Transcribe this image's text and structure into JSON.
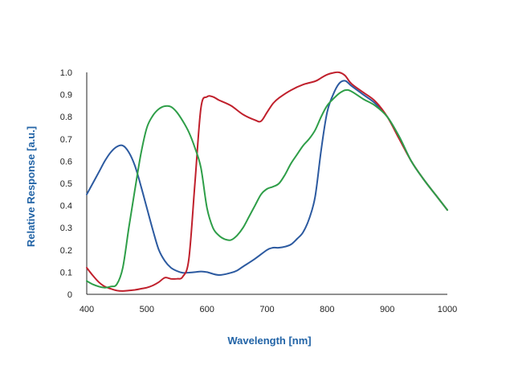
{
  "chart_data": {
    "type": "line",
    "title": "",
    "xlabel": "Wavelength [nm]",
    "ylabel": "Relative Response [a.u.]",
    "xlim": [
      400,
      1000
    ],
    "ylim": [
      0,
      1.0
    ],
    "xticks": [
      400,
      500,
      600,
      700,
      800,
      900,
      1000
    ],
    "yticks": [
      0,
      0.1,
      0.2,
      0.3,
      0.4,
      0.5,
      0.6,
      0.7,
      0.8,
      0.9,
      1.0
    ],
    "ytick_labels": [
      "0",
      "0.1",
      "0.2",
      "0.3",
      "0.4",
      "0.5",
      "0.6",
      "0.7",
      "0.8",
      "0.9",
      "1.0"
    ],
    "axis_title_color": "#2163a6",
    "grid": false,
    "series": [
      {
        "color": "#2c5aa0",
        "x": [
          400,
          410,
          420,
          430,
          440,
          450,
          460,
          470,
          480,
          490,
          500,
          510,
          520,
          530,
          540,
          550,
          560,
          570,
          580,
          590,
          600,
          620,
          640,
          650,
          660,
          680,
          700,
          710,
          720,
          730,
          740,
          750,
          760,
          770,
          780,
          790,
          800,
          810,
          820,
          830,
          840,
          860,
          880,
          900,
          920,
          940,
          960,
          980,
          1000
        ],
        "y": [
          0.45,
          0.5,
          0.55,
          0.6,
          0.64,
          0.665,
          0.67,
          0.64,
          0.58,
          0.49,
          0.39,
          0.29,
          0.2,
          0.15,
          0.12,
          0.105,
          0.097,
          0.098,
          0.1,
          0.103,
          0.1,
          0.087,
          0.097,
          0.107,
          0.125,
          0.16,
          0.2,
          0.21,
          0.21,
          0.215,
          0.225,
          0.25,
          0.28,
          0.34,
          0.44,
          0.65,
          0.82,
          0.9,
          0.95,
          0.962,
          0.94,
          0.9,
          0.86,
          0.8,
          0.71,
          0.6,
          0.52,
          0.45,
          0.38
        ]
      },
      {
        "color": "#c0202c",
        "x": [
          400,
          410,
          420,
          430,
          440,
          450,
          460,
          470,
          480,
          490,
          500,
          510,
          520,
          530,
          540,
          550,
          560,
          570,
          580,
          590,
          600,
          610,
          620,
          640,
          660,
          680,
          690,
          700,
          710,
          720,
          740,
          760,
          780,
          790,
          800,
          810,
          820,
          830,
          840,
          860,
          880,
          900,
          920,
          940,
          960,
          980,
          1000
        ],
        "y": [
          0.12,
          0.085,
          0.055,
          0.035,
          0.025,
          0.017,
          0.015,
          0.017,
          0.02,
          0.025,
          0.03,
          0.04,
          0.055,
          0.075,
          0.07,
          0.07,
          0.08,
          0.16,
          0.5,
          0.84,
          0.89,
          0.89,
          0.875,
          0.85,
          0.81,
          0.785,
          0.78,
          0.82,
          0.86,
          0.885,
          0.92,
          0.945,
          0.96,
          0.975,
          0.99,
          0.998,
          1.0,
          0.985,
          0.95,
          0.91,
          0.87,
          0.8,
          0.7,
          0.6,
          0.52,
          0.45,
          0.38
        ]
      },
      {
        "color": "#2e9e48",
        "x": [
          400,
          410,
          420,
          430,
          440,
          450,
          460,
          470,
          480,
          490,
          500,
          510,
          520,
          530,
          540,
          550,
          560,
          570,
          580,
          590,
          600,
          610,
          620,
          630,
          640,
          650,
          660,
          670,
          680,
          690,
          700,
          710,
          720,
          730,
          740,
          750,
          760,
          770,
          780,
          790,
          800,
          810,
          820,
          830,
          840,
          860,
          880,
          900,
          920,
          940,
          960,
          980,
          1000
        ],
        "y": [
          0.06,
          0.045,
          0.035,
          0.03,
          0.035,
          0.045,
          0.12,
          0.3,
          0.47,
          0.63,
          0.75,
          0.805,
          0.835,
          0.848,
          0.845,
          0.82,
          0.78,
          0.73,
          0.66,
          0.57,
          0.39,
          0.3,
          0.265,
          0.248,
          0.245,
          0.265,
          0.3,
          0.35,
          0.4,
          0.45,
          0.475,
          0.485,
          0.5,
          0.54,
          0.59,
          0.63,
          0.67,
          0.7,
          0.74,
          0.8,
          0.85,
          0.88,
          0.905,
          0.92,
          0.915,
          0.88,
          0.85,
          0.8,
          0.71,
          0.6,
          0.52,
          0.45,
          0.38
        ]
      }
    ]
  }
}
